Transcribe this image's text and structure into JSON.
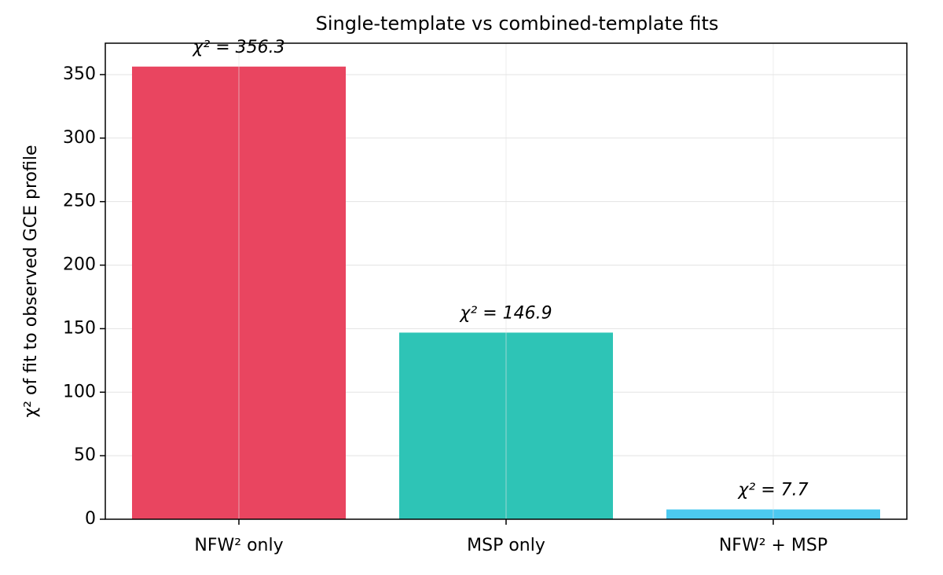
{
  "chart_data": {
    "type": "bar",
    "title": "Single-template vs combined-template fits",
    "y_label": "χ² of fit to observed GCE profile",
    "categories": [
      "NFW² only",
      "MSP only",
      "NFW² + MSP"
    ],
    "values": [
      356.3,
      146.9,
      7.7
    ],
    "value_labels": [
      "χ² = 356.3",
      "χ² = 146.9",
      "χ² = 7.7"
    ],
    "colors": [
      "#e94560",
      "#2ec4b6",
      "#4cc9f0"
    ],
    "ylim": [
      0,
      374.7
    ],
    "yticks": [
      0,
      50,
      100,
      150,
      200,
      250,
      300,
      350
    ],
    "grid": true
  }
}
